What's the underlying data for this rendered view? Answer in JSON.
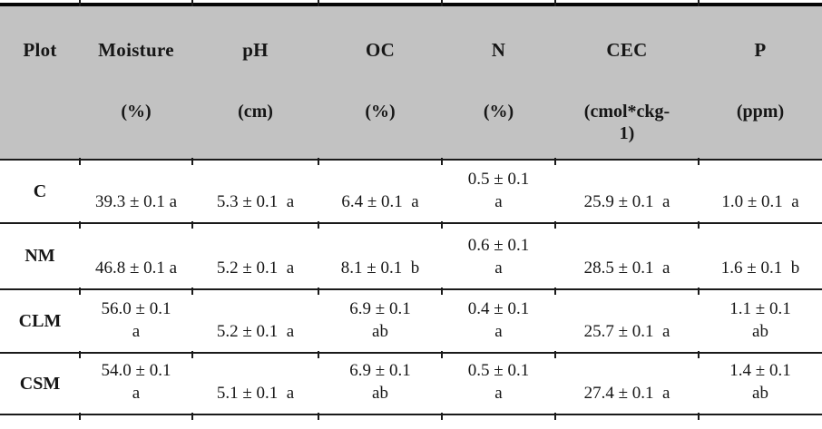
{
  "colors": {
    "header_bg": "#c2c2c2",
    "rule": "#1a1a1a",
    "top_bar": "#050505"
  },
  "table": {
    "columns": [
      {
        "label": "Plot",
        "unit": ""
      },
      {
        "label": "Moisture",
        "unit": "(%)"
      },
      {
        "label": "pH",
        "unit": "(cm)"
      },
      {
        "label": "OC",
        "unit": "(%)"
      },
      {
        "label": "N",
        "unit": "(%)"
      },
      {
        "label": "CEC",
        "unit": "(cmol*ckg-\n1)"
      },
      {
        "label": "P",
        "unit": "(ppm)"
      }
    ],
    "rows": [
      {
        "cells": [
          "C",
          "39.3 ± 0.1 a",
          "5.3 ± 0.1  a",
          "6.4 ± 0.1  a",
          "0.5 ± 0.1\na",
          "25.9 ± 0.1  a",
          "1.0 ± 0.1  a"
        ]
      },
      {
        "cells": [
          "NM",
          "46.8 ± 0.1 a",
          "5.2 ± 0.1  a",
          "8.1 ± 0.1  b",
          "0.6 ± 0.1\na",
          "28.5 ± 0.1  a",
          "1.6 ± 0.1  b"
        ]
      },
      {
        "cells": [
          "CLM",
          "56.0 ± 0.1\na",
          "5.2 ± 0.1  a",
          "6.9 ± 0.1\nab",
          "0.4 ± 0.1\na",
          "25.7 ± 0.1  a",
          "1.1 ± 0.1\nab"
        ]
      },
      {
        "cells": [
          "CSM",
          "54.0 ± 0.1\na",
          "5.1 ± 0.1  a",
          "6.9 ± 0.1\nab",
          "0.5 ± 0.1\na",
          "27.4 ± 0.1  a",
          "1.4 ± 0.1\nab"
        ]
      }
    ]
  }
}
